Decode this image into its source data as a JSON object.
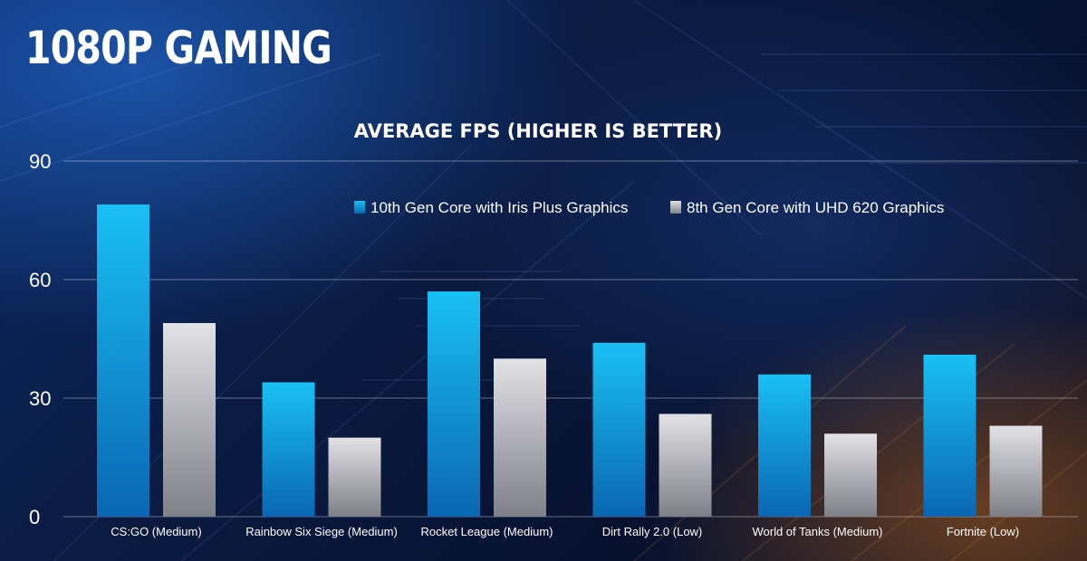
{
  "slide": {
    "title": "1080P GAMING"
  },
  "colors": {
    "series_1_top": "#19c0f5",
    "series_1_bottom": "#0a66b4",
    "series_2_top": "#e2e2e6",
    "series_2_bottom": "#7e8088"
  },
  "chart_data": {
    "type": "bar",
    "title": "AVERAGE FPS (HIGHER IS BETTER)",
    "xlabel": "",
    "ylabel": "",
    "ylim": [
      0,
      90
    ],
    "yticks": [
      0,
      30,
      60,
      90
    ],
    "grid": true,
    "legend_position": "top-right",
    "categories": [
      "CS:GO (Medium)",
      "Rainbow Six Siege (Medium)",
      "Rocket League (Medium)",
      "Dirt Rally 2.0 (Low)",
      "World of Tanks (Medium)",
      "Fortnite (Low)"
    ],
    "series": [
      {
        "name": "10th Gen Core with Iris Plus Graphics",
        "values": [
          79,
          34,
          57,
          44,
          36,
          41
        ]
      },
      {
        "name": "8th Gen Core with UHD 620 Graphics",
        "values": [
          49,
          20,
          40,
          26,
          21,
          23
        ]
      }
    ]
  }
}
